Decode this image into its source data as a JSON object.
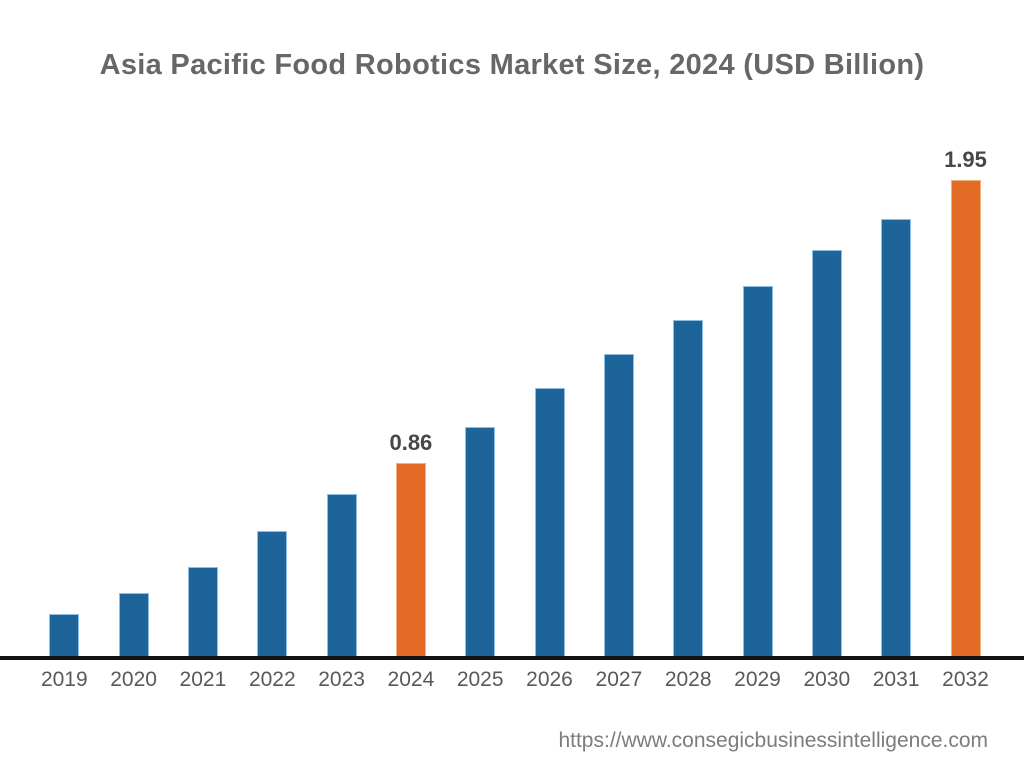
{
  "page": {
    "source_url": "https://www.consegicbusinessintelligence.com"
  },
  "colors": {
    "background": "#FFFFFF",
    "bar_default": "#1C6499",
    "bar_default_edge": "#8FBEE0",
    "bar_highlight": "#E26C26",
    "bar_highlight_edge": "#F2AF7E",
    "title_text": "#66676A",
    "label_text": "#474747",
    "tick_text": "#58595B",
    "axis_line": "#121212",
    "source_text": "#7C7C7C"
  },
  "chart_data": {
    "type": "bar",
    "title": "Asia Pacific Food Robotics Market Size, 2024 (USD Billion)",
    "unit": "USD Billion",
    "categories": [
      "2019",
      "2020",
      "2021",
      "2022",
      "2023",
      "2024",
      "2025",
      "2026",
      "2027",
      "2028",
      "2029",
      "2030",
      "2031",
      "2032"
    ],
    "values": [
      0.28,
      0.36,
      0.46,
      0.6,
      0.74,
      0.86,
      1.0,
      1.15,
      1.28,
      1.41,
      1.54,
      1.68,
      1.8,
      1.95
    ],
    "labeled_values_note": "only 2024 and 2032 carry data labels in the figure; other values estimated from bar heights",
    "point_labels": {
      "2024": "0.86",
      "2032": "1.95"
    },
    "highlighted_categories": [
      "2024",
      "2032"
    ],
    "xlabel": "",
    "ylabel": "",
    "axis": {
      "y_axis_visible": false,
      "x_axis_line": true,
      "gridlines": false,
      "legend": "none"
    }
  }
}
